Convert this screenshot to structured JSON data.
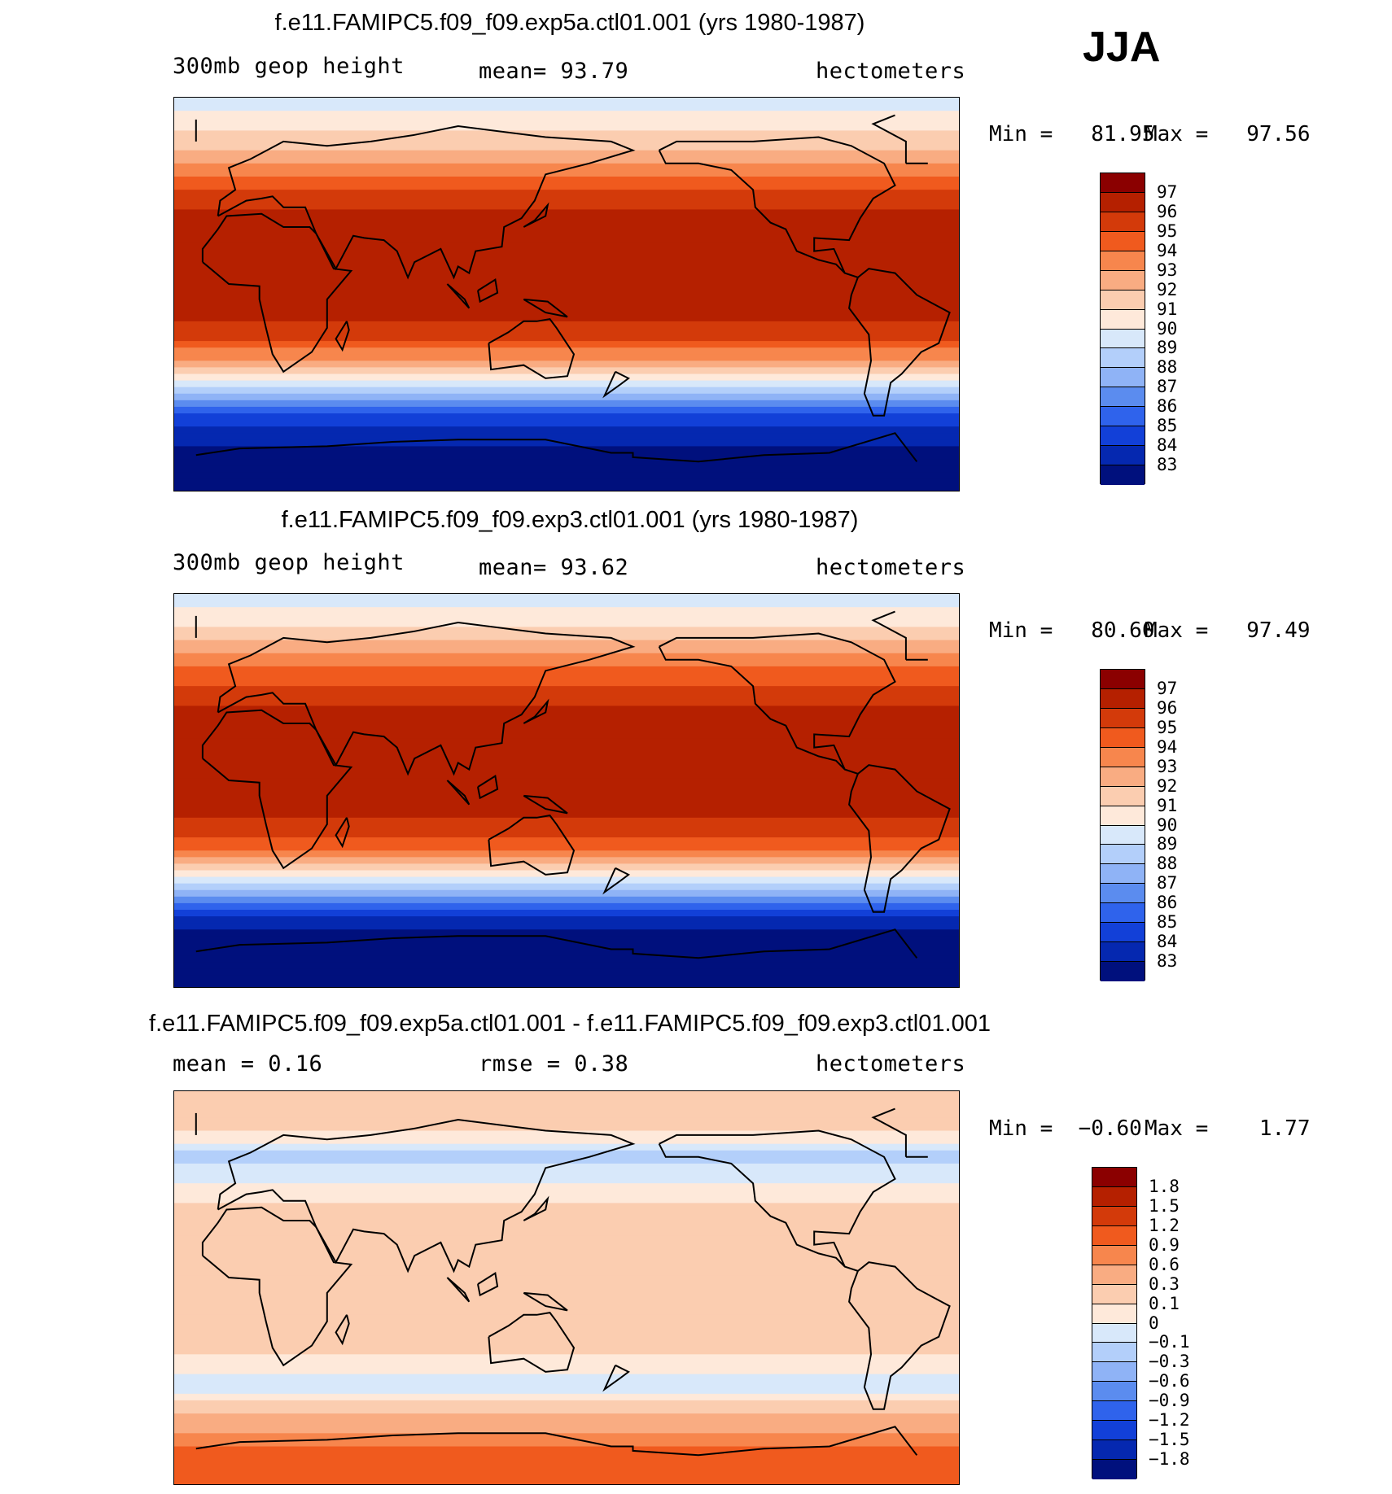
{
  "season": "JJA",
  "chart_data": [
    {
      "type": "heatmap",
      "title": "f.e11.FAMIPC5.f09_f09.exp5a.ctl01.001 (yrs 1980-1987)",
      "left_label": "300mb geop height",
      "center_label": "mean=   93.79",
      "right_label": "hectometers",
      "min_label": "Min =   81.95",
      "max_label": "Max =   97.56",
      "levels": [
        "97",
        "96",
        "95",
        "94",
        "93",
        "92",
        "91",
        "90",
        "89",
        "88",
        "87",
        "86",
        "85",
        "84",
        "83"
      ],
      "colors": [
        "#8b0000",
        "#b52000",
        "#d33a0a",
        "#f05a1e",
        "#f7864d",
        "#f9ac82",
        "#fbcdb0",
        "#fee9da",
        "#d8e8fa",
        "#b3cffa",
        "#8fb3f6",
        "#5b8cef",
        "#2f63ec",
        "#1240d8",
        "#0528b0",
        "#00107d"
      ],
      "zonal_profile": [
        {
          "lat": 90,
          "value": 89.5
        },
        {
          "lat": 80,
          "value": 90.2
        },
        {
          "lat": 70,
          "value": 91.5
        },
        {
          "lat": 60,
          "value": 93.0
        },
        {
          "lat": 50,
          "value": 94.6
        },
        {
          "lat": 40,
          "value": 95.8
        },
        {
          "lat": 30,
          "value": 96.7
        },
        {
          "lat": 20,
          "value": 96.8
        },
        {
          "lat": 10,
          "value": 96.5
        },
        {
          "lat": 0,
          "value": 96.4
        },
        {
          "lat": -10,
          "value": 96.2
        },
        {
          "lat": -20,
          "value": 95.2
        },
        {
          "lat": -30,
          "value": 92.8
        },
        {
          "lat": -40,
          "value": 89.5
        },
        {
          "lat": -50,
          "value": 86.0
        },
        {
          "lat": -60,
          "value": 84.0
        },
        {
          "lat": -70,
          "value": 83.0
        },
        {
          "lat": -80,
          "value": 82.5
        },
        {
          "lat": -90,
          "value": 82.0
        }
      ]
    },
    {
      "type": "heatmap",
      "title": "f.e11.FAMIPC5.f09_f09.exp3.ctl01.001 (yrs 1980-1987)",
      "left_label": "300mb geop height",
      "center_label": "mean=   93.62",
      "right_label": "hectometers",
      "min_label": "Min =   80.60",
      "max_label": "Max =   97.49",
      "levels": [
        "97",
        "96",
        "95",
        "94",
        "93",
        "92",
        "91",
        "90",
        "89",
        "88",
        "87",
        "86",
        "85",
        "84",
        "83"
      ],
      "colors": [
        "#8b0000",
        "#b52000",
        "#d33a0a",
        "#f05a1e",
        "#f7864d",
        "#f9ac82",
        "#fbcdb0",
        "#fee9da",
        "#d8e8fa",
        "#b3cffa",
        "#8fb3f6",
        "#5b8cef",
        "#2f63ec",
        "#1240d8",
        "#0528b0",
        "#00107d"
      ],
      "zonal_profile": [
        {
          "lat": 90,
          "value": 89.5
        },
        {
          "lat": 80,
          "value": 90.4
        },
        {
          "lat": 70,
          "value": 91.8
        },
        {
          "lat": 60,
          "value": 93.3
        },
        {
          "lat": 50,
          "value": 94.9
        },
        {
          "lat": 40,
          "value": 96.0
        },
        {
          "lat": 30,
          "value": 96.8
        },
        {
          "lat": 20,
          "value": 96.6
        },
        {
          "lat": 10,
          "value": 96.4
        },
        {
          "lat": 0,
          "value": 96.3
        },
        {
          "lat": -10,
          "value": 96.2
        },
        {
          "lat": -20,
          "value": 95.4
        },
        {
          "lat": -30,
          "value": 93.0
        },
        {
          "lat": -40,
          "value": 89.7
        },
        {
          "lat": -50,
          "value": 86.2
        },
        {
          "lat": -60,
          "value": 83.6
        },
        {
          "lat": -70,
          "value": 82.0
        },
        {
          "lat": -80,
          "value": 81.3
        },
        {
          "lat": -90,
          "value": 81.0
        }
      ]
    },
    {
      "type": "heatmap",
      "title": "f.e11.FAMIPC5.f09_f09.exp5a.ctl01.001 - f.e11.FAMIPC5.f09_f09.exp3.ctl01.001",
      "left_label": "mean =    0.16",
      "center_label": "rmse =    0.38",
      "right_label": "hectometers",
      "min_label": "Min =  −0.60",
      "max_label": "Max =    1.77",
      "levels": [
        "1.8",
        "1.5",
        "1.2",
        "0.9",
        "0.6",
        "0.3",
        "0.1",
        "0",
        "−0.1",
        "−0.3",
        "−0.6",
        "−0.9",
        "−1.2",
        "−1.5",
        "−1.8"
      ],
      "colors": [
        "#8b0000",
        "#b52000",
        "#d33a0a",
        "#f05a1e",
        "#f7864d",
        "#f9ac82",
        "#fbcdb0",
        "#fee9da",
        "#d8e8fa",
        "#b3cffa",
        "#8fb3f6",
        "#5b8cef",
        "#2f63ec",
        "#1240d8",
        "#0528b0",
        "#00107d"
      ],
      "zonal_profile": [
        {
          "lat": 90,
          "value": 0.2
        },
        {
          "lat": 75,
          "value": 0.2
        },
        {
          "lat": 60,
          "value": -0.15
        },
        {
          "lat": 45,
          "value": 0.05
        },
        {
          "lat": 30,
          "value": 0.15
        },
        {
          "lat": 15,
          "value": 0.2
        },
        {
          "lat": 0,
          "value": 0.2
        },
        {
          "lat": -15,
          "value": 0.2
        },
        {
          "lat": -30,
          "value": 0.1
        },
        {
          "lat": -45,
          "value": -0.05
        },
        {
          "lat": -60,
          "value": 0.4
        },
        {
          "lat": -70,
          "value": 0.8
        },
        {
          "lat": -80,
          "value": 1.1
        },
        {
          "lat": -90,
          "value": 1.0
        }
      ]
    }
  ]
}
